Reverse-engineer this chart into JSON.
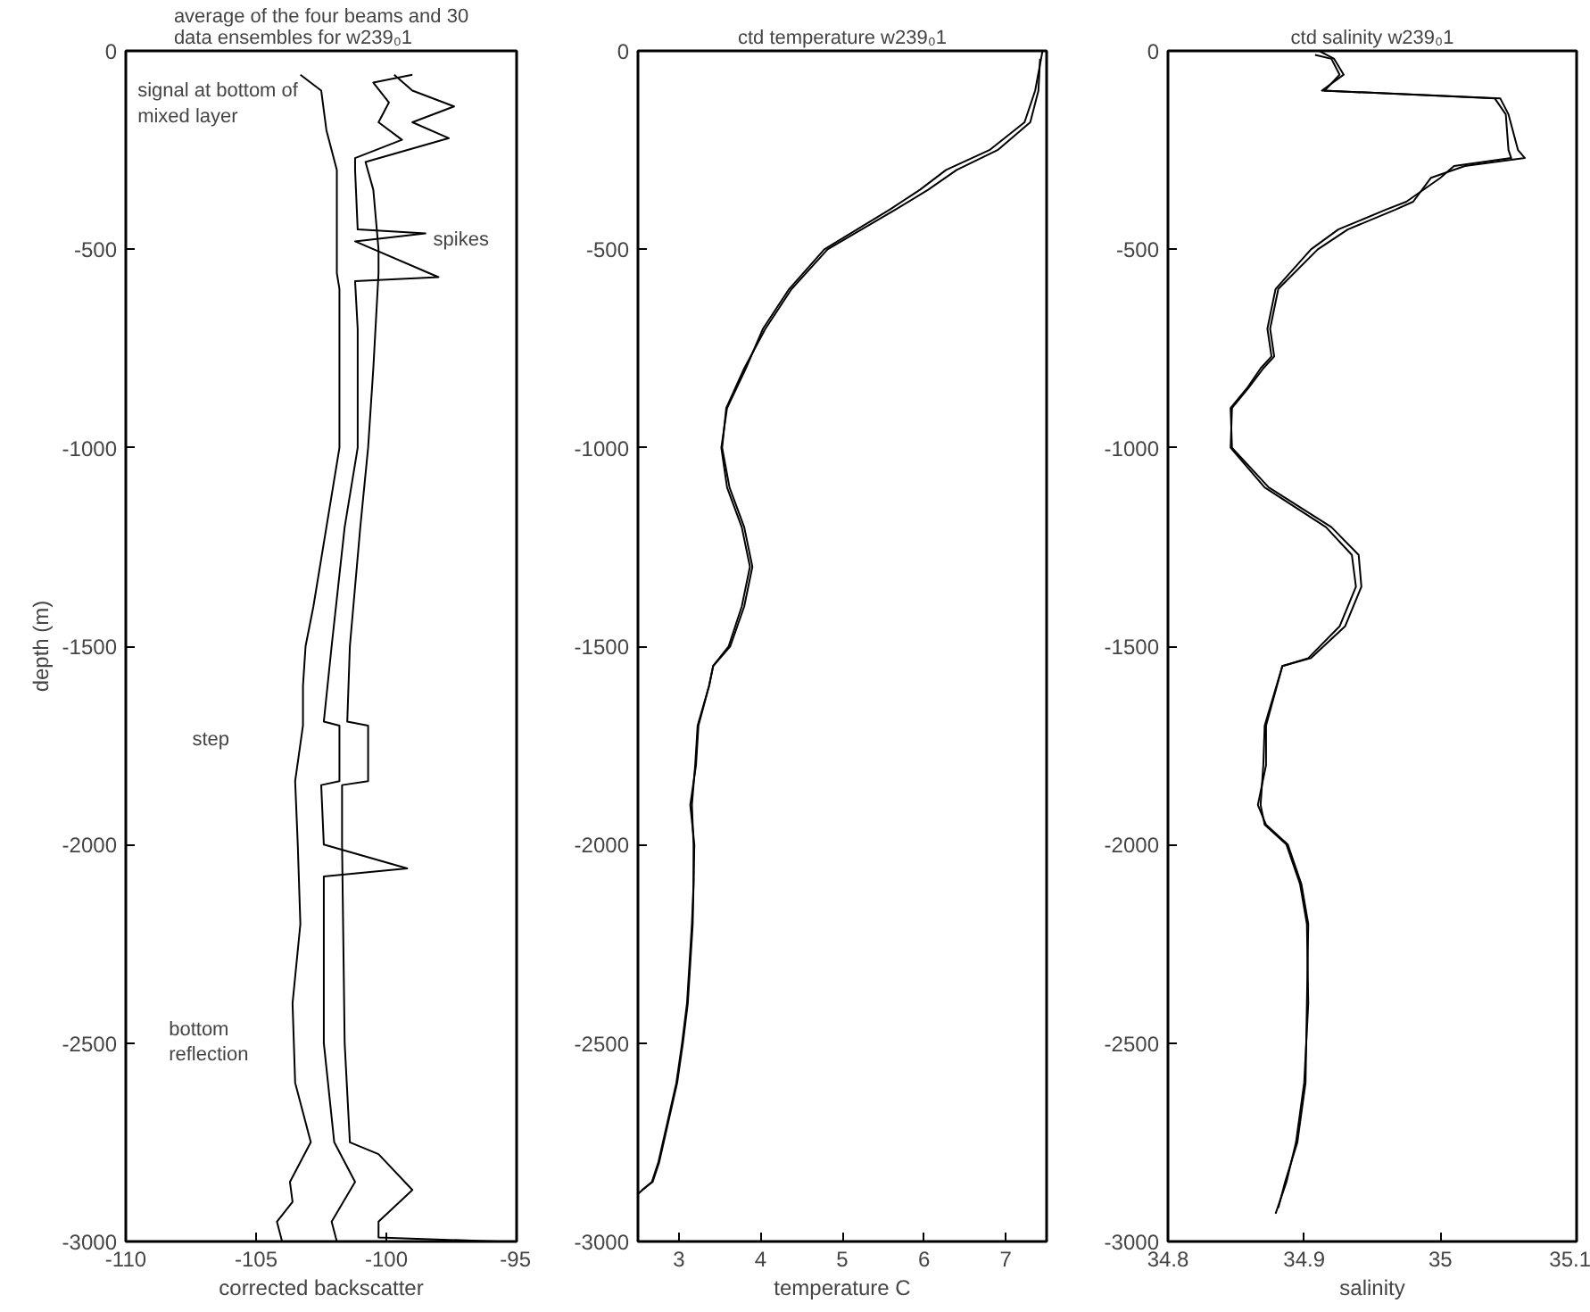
{
  "chart_data": [
    {
      "type": "line",
      "title": "average of the four beams and 30\ndata ensembles for w239₀1",
      "xlabel": "corrected backscatter",
      "ylabel": "depth (m)",
      "xlim": [
        -110,
        -95
      ],
      "xticks": [
        -110,
        -105,
        -100,
        -95
      ],
      "ylim": [
        -3000,
        0
      ],
      "yticks": [
        -3000,
        -2500,
        -2000,
        -1500,
        -1000,
        -500,
        0
      ],
      "grid": false,
      "series": [
        {
          "color": "#000000",
          "x": [
            -103.3,
            -102.5,
            -102.3,
            -101.9,
            -101.9,
            -101.9,
            -101.8,
            -101.8,
            -101.8,
            -102.3,
            -102.8,
            -103.1,
            -103.2,
            -103.2,
            -103.5,
            -103.4,
            -103.3,
            -103.6,
            -103.5,
            -103.1,
            -102.9,
            -103.3,
            -103.7,
            -103.6,
            -104.2,
            -104.0
          ],
          "values": [
            -60,
            -100,
            -200,
            -300,
            -450,
            -560,
            -600,
            -800,
            -1000,
            -1200,
            -1400,
            -1500,
            -1600,
            -1700,
            -1840,
            -2000,
            -2200,
            -2400,
            -2600,
            -2700,
            -2750,
            -2800,
            -2850,
            -2900,
            -2950,
            -3000
          ]
        },
        {
          "color": "#000000",
          "x": [
            -99.0,
            -100.5,
            -99.9,
            -100.3,
            -99.4,
            -101.2,
            -101.2,
            -101.1,
            -98.5,
            -101.2,
            -98.0,
            -101.2,
            -101.1,
            -101.1,
            -101.6,
            -102.1,
            -102.4,
            -101.8,
            -101.8,
            -102.5,
            -102.4,
            -99.2,
            -102.4,
            -102.4,
            -102.4,
            -102.0,
            -101.2,
            -102.1,
            -101.9
          ],
          "values": [
            -60,
            -80,
            -130,
            -180,
            -224,
            -270,
            -300,
            -450,
            -460,
            -480,
            -570,
            -580,
            -700,
            -1000,
            -1200,
            -1500,
            -1690,
            -1700,
            -1840,
            -1850,
            -2000,
            -2060,
            -2080,
            -2200,
            -2500,
            -2750,
            -2850,
            -2950,
            -3000
          ]
        },
        {
          "color": "#000000",
          "x": [
            -99.7,
            -99.0,
            -97.4,
            -99.0,
            -97.6,
            -100.8,
            -100.5,
            -100.3,
            -100.3,
            -100.5,
            -100.7,
            -101.0,
            -101.4,
            -101.5,
            -100.7,
            -100.7,
            -101.7,
            -101.7,
            -101.6,
            -101.4,
            -100.3,
            -99.0,
            -100.3,
            -100.3,
            -95.7
          ],
          "values": [
            -60,
            -100,
            -140,
            -180,
            -220,
            -280,
            -350,
            -500,
            -560,
            -800,
            -1000,
            -1200,
            -1500,
            -1690,
            -1700,
            -1840,
            -1850,
            -2000,
            -2500,
            -2750,
            -2780,
            -2870,
            -2950,
            -2990,
            -3000
          ]
        }
      ],
      "annotations": [
        "signal at bottom of\nmixed layer",
        {
          "text": "spikes",
          "x": -98.2,
          "y": -450
        },
        "step",
        "bottom\nreflection"
      ]
    },
    {
      "type": "line",
      "title": "ctd temperature w239₀1",
      "xlabel": "temperature C",
      "xlim": [
        2.5,
        7.5
      ],
      "xticks": [
        3,
        4,
        5,
        6,
        7
      ],
      "ylim": [
        -3000,
        0
      ],
      "yticks": [
        -3000,
        -2500,
        -2000,
        -1500,
        -1000,
        -500,
        0
      ],
      "grid": false,
      "series": [
        {
          "color": "#000000",
          "x": [
            7.45,
            7.36,
            7.23,
            6.8,
            6.27,
            5.95,
            5.58,
            4.78,
            4.35,
            4.03,
            3.82,
            3.59,
            3.52,
            3.59,
            3.77,
            3.87,
            3.77,
            3.61,
            3.42,
            3.37,
            3.23,
            3.2,
            3.16,
            3.18,
            3.18,
            3.16,
            3.1,
            3.04,
            2.97,
            2.86,
            2.75,
            2.67,
            2.5
          ],
          "values": [
            0,
            -100,
            -180,
            -250,
            -300,
            -350,
            -400,
            -500,
            -600,
            -700,
            -800,
            -900,
            -1000,
            -1100,
            -1200,
            -1300,
            -1400,
            -1500,
            -1550,
            -1600,
            -1700,
            -1800,
            -1900,
            -2000,
            -2100,
            -2200,
            -2400,
            -2500,
            -2600,
            -2700,
            -2800,
            -2850,
            -2880
          ]
        },
        {
          "color": "#000000",
          "x": [
            7.42,
            7.4,
            7.3,
            6.9,
            6.4,
            6.05,
            5.65,
            4.82,
            4.38,
            4.06,
            3.8,
            3.58,
            3.53,
            3.62,
            3.8,
            3.9,
            3.8,
            3.63,
            3.42,
            3.37,
            3.24,
            3.21,
            3.14,
            3.19,
            3.18,
            3.17,
            3.11,
            3.05,
            2.98,
            2.87,
            2.76,
            2.68,
            2.55
          ],
          "values": [
            -20,
            -100,
            -180,
            -250,
            -300,
            -350,
            -400,
            -500,
            -600,
            -700,
            -800,
            -900,
            -1000,
            -1100,
            -1200,
            -1300,
            -1400,
            -1500,
            -1550,
            -1600,
            -1700,
            -1800,
            -1900,
            -2000,
            -2100,
            -2200,
            -2400,
            -2500,
            -2600,
            -2700,
            -2800,
            -2850,
            -2870
          ]
        }
      ]
    },
    {
      "type": "line",
      "title": "ctd salinity w239₀1",
      "xlabel": "salinity",
      "xlim": [
        34.8,
        35.1
      ],
      "xticks": [
        34.8,
        34.9,
        35,
        35.1
      ],
      "ylim": [
        -3000,
        0
      ],
      "yticks": [
        -3000,
        -2500,
        -2000,
        -1500,
        -1000,
        -500,
        0
      ],
      "grid": false,
      "series": [
        {
          "color": "#000000",
          "x": [
            34.911,
            34.922,
            34.929,
            34.913,
            35.044,
            35.05,
            35.057,
            35.062,
            35.018,
            34.993,
            34.98,
            34.967,
            34.932,
            34.91,
            34.881,
            34.875,
            34.878,
            34.87,
            34.859,
            34.847,
            34.846,
            34.871,
            34.916,
            34.935,
            34.938,
            34.926,
            34.903,
            34.884,
            34.871,
            34.87,
            34.868,
            34.871,
            34.887,
            34.897,
            34.902,
            34.903,
            34.9,
            34.894,
            34.887,
            34.879
          ],
          "values": [
            0,
            -20,
            -60,
            -100,
            -120,
            -160,
            -250,
            -270,
            -290,
            -320,
            -380,
            -400,
            -450,
            -500,
            -600,
            -700,
            -770,
            -800,
            -850,
            -900,
            -1000,
            -1100,
            -1200,
            -1270,
            -1350,
            -1450,
            -1530,
            -1550,
            -1700,
            -1800,
            -1900,
            -1950,
            -2000,
            -2100,
            -2200,
            -2400,
            -2600,
            -2750,
            -2850,
            -2930
          ]
        },
        {
          "color": "#000000",
          "x": [
            34.908,
            34.92,
            34.926,
            34.915,
            35.04,
            35.048,
            35.05,
            35.052,
            35.01,
            35.0,
            34.975,
            34.96,
            34.925,
            34.905,
            34.879,
            34.873,
            34.876,
            34.868,
            34.858,
            34.846,
            34.847,
            34.874,
            34.92,
            34.94,
            34.942,
            34.93,
            34.905,
            34.884,
            34.872,
            34.872,
            34.866,
            34.872,
            34.888,
            34.898,
            34.903,
            34.902,
            34.901,
            34.895,
            34.886,
            34.881
          ],
          "values": [
            -10,
            -20,
            -60,
            -100,
            -120,
            -160,
            -250,
            -270,
            -290,
            -320,
            -380,
            -400,
            -450,
            -500,
            -600,
            -700,
            -770,
            -800,
            -850,
            -900,
            -1000,
            -1100,
            -1200,
            -1270,
            -1350,
            -1450,
            -1530,
            -1550,
            -1700,
            -1800,
            -1900,
            -1950,
            -2000,
            -2100,
            -2200,
            -2400,
            -2600,
            -2750,
            -2850,
            -2915
          ]
        }
      ]
    }
  ]
}
